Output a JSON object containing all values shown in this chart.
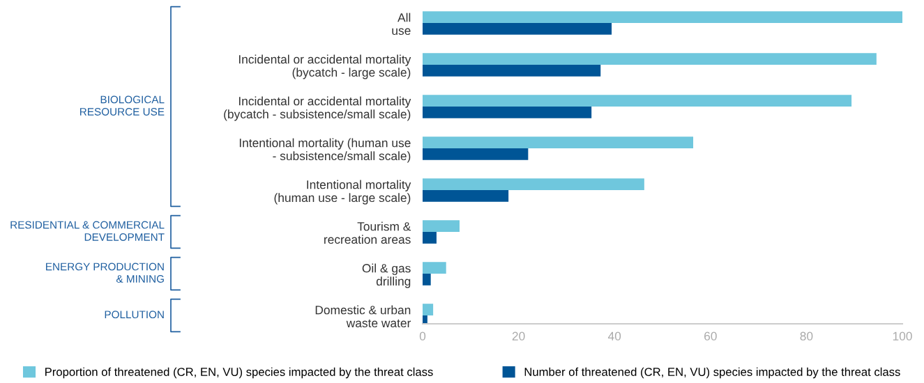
{
  "chart_data": {
    "type": "bar",
    "orientation": "horizontal",
    "categories": [
      "All\nuse",
      "Incidental or accidental mortality\n(bycatch - large scale)",
      "Incidental or accidental mortality\n(bycatch - subsistence/small scale)",
      "Intentional mortality (human use\n- subsistence/small scale)",
      "Intentional mortality\n(human use - large scale)",
      "Tourism &\nrecreation areas",
      "Oil & gas\ndrilling",
      "Domestic & urban\nwaste water"
    ],
    "series": [
      {
        "name": "Proportion of threatened (CR, EN, VU) species impacted by the threat class",
        "color": "#6fc7dd",
        "values": [
          100,
          94.6,
          89.4,
          56.4,
          46.2,
          7.7,
          4.9,
          2.2
        ]
      },
      {
        "name": "Number of threatened (CR, EN, VU) species impacted by the threat class",
        "color": "#005596",
        "values": [
          39.4,
          37.1,
          35.2,
          22,
          17.9,
          2.9,
          1.7,
          1.0
        ]
      }
    ],
    "xlim": [
      0,
      100
    ],
    "xticks": [
      0,
      20,
      40,
      60,
      80,
      100
    ],
    "grid": false,
    "legend": "bottom",
    "annotations": [
      "BIOLOGICAL\nRESOURCE USE",
      "RESIDENTIAL & COMMERCIAL\nDEVELOPMENT",
      "ENERGY PRODUCTION\n& MINING",
      "POLLUTION"
    ]
  }
}
